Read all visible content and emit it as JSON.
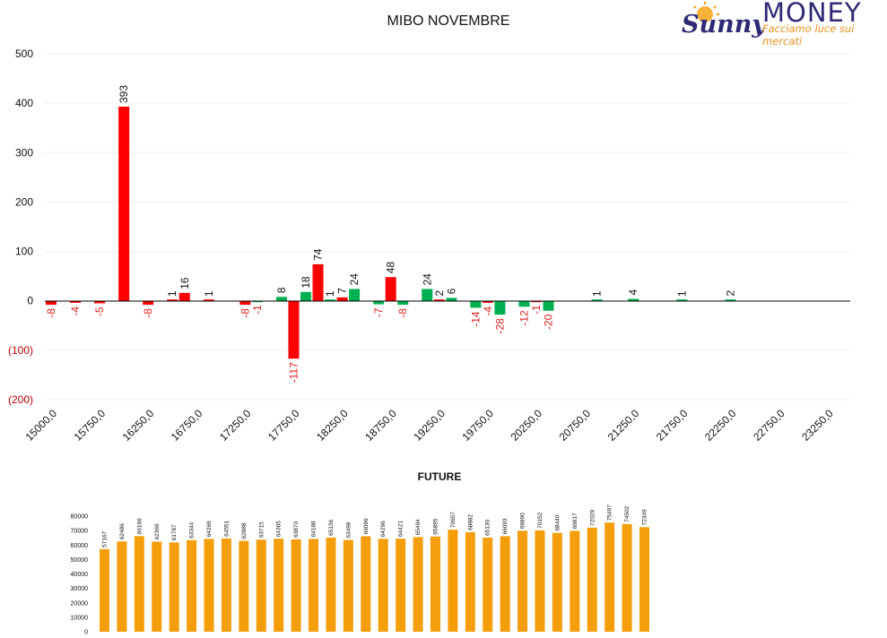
{
  "brand": {
    "word": "MONEY",
    "tagline": "Facciamo luce sui mercati",
    "script_word": "Sunny"
  },
  "colors": {
    "positive_bar": "#00b050",
    "negative_bar": "#ff0000",
    "negative_label": "#e02020",
    "future_bar": "#f59e0b",
    "logo_navy": "#2e2a75",
    "logo_orange": "#e8921a"
  },
  "chart_data": [
    {
      "type": "bar",
      "title": "MIBO NOVEMBRE",
      "y_ticks": [
        "500",
        "400",
        "300",
        "200",
        "100",
        "0",
        "(100)",
        "(200)"
      ],
      "ylim": [
        -200,
        500
      ],
      "x_tick_labels": [
        "15000,0",
        "15750,0",
        "16250,0",
        "16750,0",
        "17250,0",
        "17750,0",
        "18250,0",
        "18750,0",
        "19250,0",
        "19750,0",
        "20250,0",
        "20750,0",
        "21250,0",
        "21750,0",
        "22250,0",
        "22750,0",
        "23250,0"
      ],
      "bars": [
        {
          "index": 0,
          "value": -8,
          "color": "negative"
        },
        {
          "index": 1,
          "value": -4,
          "color": "negative"
        },
        {
          "index": 2,
          "value": -5,
          "color": "negative"
        },
        {
          "index": 3,
          "value": 393,
          "color": "negative"
        },
        {
          "index": 4,
          "value": -8,
          "color": "negative"
        },
        {
          "index": 5,
          "value": 1,
          "color": "negative"
        },
        {
          "index": 5.5,
          "value": 16,
          "color": "negative"
        },
        {
          "index": 6.5,
          "value": 1,
          "color": "negative"
        },
        {
          "index": 8,
          "value": -8,
          "color": "negative"
        },
        {
          "index": 8.5,
          "value": -1,
          "color": "positive"
        },
        {
          "index": 9.5,
          "value": 8,
          "color": "positive"
        },
        {
          "index": 10,
          "value": -117,
          "color": "negative"
        },
        {
          "index": 10.5,
          "value": 18,
          "color": "positive"
        },
        {
          "index": 11,
          "value": 74,
          "color": "negative"
        },
        {
          "index": 11.5,
          "value": 1,
          "color": "positive"
        },
        {
          "index": 12,
          "value": 7,
          "color": "negative"
        },
        {
          "index": 12.5,
          "value": 24,
          "color": "positive"
        },
        {
          "index": 13.5,
          "value": -7,
          "color": "positive"
        },
        {
          "index": 14,
          "value": 48,
          "color": "negative"
        },
        {
          "index": 14.5,
          "value": -8,
          "color": "positive"
        },
        {
          "index": 15.5,
          "value": 24,
          "color": "positive"
        },
        {
          "index": 16,
          "value": 2,
          "color": "negative"
        },
        {
          "index": 16.5,
          "value": 6,
          "color": "positive"
        },
        {
          "index": 17.5,
          "value": -14,
          "color": "positive"
        },
        {
          "index": 18,
          "value": -4,
          "color": "negative"
        },
        {
          "index": 18.5,
          "value": -28,
          "color": "positive"
        },
        {
          "index": 19.5,
          "value": -12,
          "color": "positive"
        },
        {
          "index": 20,
          "value": -1,
          "color": "negative"
        },
        {
          "index": 20.5,
          "value": -20,
          "color": "positive"
        },
        {
          "index": 22.5,
          "value": 1,
          "color": "positive"
        },
        {
          "index": 24,
          "value": 4,
          "color": "positive"
        },
        {
          "index": 26,
          "value": 1,
          "color": "positive"
        },
        {
          "index": 28,
          "value": 2,
          "color": "positive"
        }
      ]
    },
    {
      "type": "bar",
      "title": "FUTURE",
      "y_ticks": [
        "80000",
        "70000",
        "60000",
        "50000",
        "40000",
        "30000",
        "20000",
        "10000",
        "0"
      ],
      "ylim": [
        0,
        80000
      ],
      "values": [
        57167,
        62486,
        66166,
        62369,
        61787,
        63344,
        64269,
        64551,
        62888,
        63715,
        64365,
        63870,
        64188,
        65136,
        63498,
        66096,
        64296,
        64421,
        65494,
        65895,
        70657,
        68882,
        65130,
        66093,
        69890,
        70152,
        68440,
        69817,
        72029,
        75497,
        74502,
        72349
      ]
    }
  ]
}
